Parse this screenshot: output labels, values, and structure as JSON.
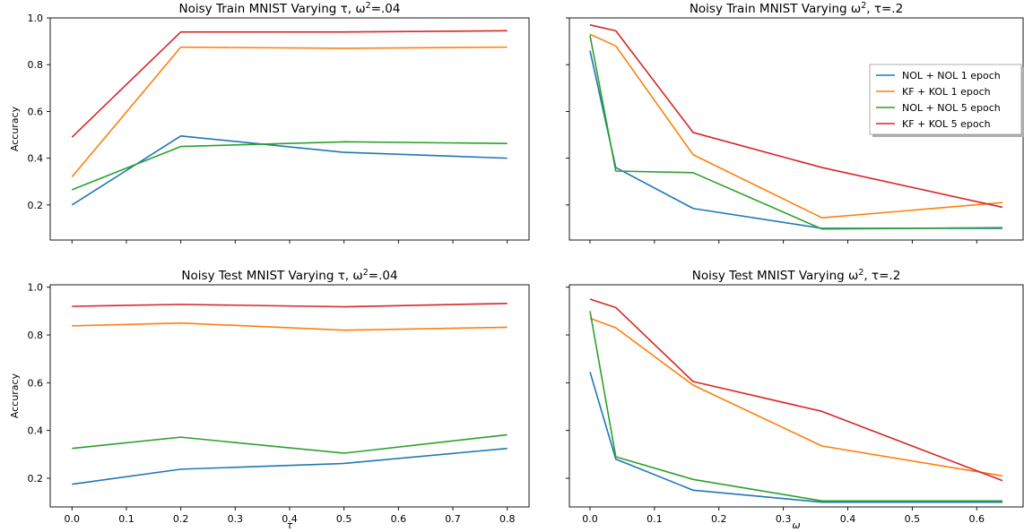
{
  "figure": {
    "colors": {
      "NOL + NOL 1 epoch": "#1f77b4",
      "KF + KOL 1 epoch": "#ff7f0e",
      "NOL + NOL 5 epoch": "#2ca02c",
      "KF + KOL 5 epoch": "#d62728"
    }
  },
  "chart_data": [
    {
      "type": "line",
      "title": "Noisy Train MNIST Varying τ, ω²=.04",
      "ylabel": "Accuracy",
      "xlabel": "",
      "xlim": [
        -0.04,
        0.84
      ],
      "ylim": [
        0.05,
        1.0
      ],
      "xticks": [
        0.0,
        0.1,
        0.2,
        0.3,
        0.4,
        0.5,
        0.6,
        0.7,
        0.8
      ],
      "yticks": [
        0.2,
        0.4,
        0.6,
        0.8,
        1.0
      ],
      "show_xticklabels": false,
      "show_yticklabels": true,
      "x": [
        0.0,
        0.2,
        0.5,
        0.8
      ],
      "series": [
        {
          "name": "NOL + NOL 1 epoch",
          "values": [
            0.2,
            0.495,
            0.425,
            0.4
          ]
        },
        {
          "name": "KF + KOL 1 epoch",
          "values": [
            0.32,
            0.875,
            0.87,
            0.875
          ]
        },
        {
          "name": "NOL + NOL 5 epoch",
          "values": [
            0.265,
            0.45,
            0.47,
            0.463
          ]
        },
        {
          "name": "KF + KOL 5 epoch",
          "values": [
            0.49,
            0.94,
            0.94,
            0.945
          ]
        }
      ]
    },
    {
      "type": "line",
      "title": "Noisy Train MNIST Varying ω², τ=.2",
      "ylabel": "",
      "xlabel": "",
      "xlim": [
        -0.032,
        0.672
      ],
      "ylim": [
        0.05,
        1.0
      ],
      "xticks": [
        0.0,
        0.1,
        0.2,
        0.3,
        0.4,
        0.5,
        0.6
      ],
      "yticks": [
        0.2,
        0.4,
        0.6,
        0.8,
        1.0
      ],
      "show_xticklabels": false,
      "show_yticklabels": false,
      "x": [
        0.0,
        0.04,
        0.16,
        0.36,
        0.64
      ],
      "legend": {
        "position": "upper right",
        "entries": [
          "NOL + NOL 1 epoch",
          "KF + KOL 1 epoch",
          "NOL + NOL 5 epoch",
          "KF + KOL 5 epoch"
        ]
      },
      "series": [
        {
          "name": "NOL + NOL 1 epoch",
          "values": [
            0.86,
            0.36,
            0.185,
            0.1,
            0.1
          ]
        },
        {
          "name": "KF + KOL 1 epoch",
          "values": [
            0.93,
            0.88,
            0.415,
            0.145,
            0.21
          ]
        },
        {
          "name": "NOL + NOL 5 epoch",
          "values": [
            0.925,
            0.345,
            0.338,
            0.097,
            0.103
          ]
        },
        {
          "name": "KF + KOL 5 epoch",
          "values": [
            0.97,
            0.945,
            0.51,
            0.36,
            0.19
          ]
        }
      ]
    },
    {
      "type": "line",
      "title": "Noisy Test MNIST Varying τ, ω²=.04",
      "ylabel": "Accuracy",
      "xlabel": "τ",
      "xlim": [
        -0.04,
        0.84
      ],
      "ylim": [
        0.08,
        1.01
      ],
      "xticks": [
        0.0,
        0.1,
        0.2,
        0.3,
        0.4,
        0.5,
        0.6,
        0.7,
        0.8
      ],
      "yticks": [
        0.2,
        0.4,
        0.6,
        0.8,
        1.0
      ],
      "show_xticklabels": true,
      "show_yticklabels": true,
      "x": [
        0.0,
        0.2,
        0.5,
        0.8
      ],
      "series": [
        {
          "name": "NOL + NOL 1 epoch",
          "values": [
            0.175,
            0.238,
            0.262,
            0.325
          ]
        },
        {
          "name": "KF + KOL 1 epoch",
          "values": [
            0.838,
            0.85,
            0.82,
            0.832
          ]
        },
        {
          "name": "NOL + NOL 5 epoch",
          "values": [
            0.325,
            0.372,
            0.305,
            0.382
          ]
        },
        {
          "name": "KF + KOL 5 epoch",
          "values": [
            0.92,
            0.928,
            0.918,
            0.932
          ]
        }
      ]
    },
    {
      "type": "line",
      "title": "Noisy Test MNIST Varying ω², τ=.2",
      "ylabel": "",
      "xlabel": "ω",
      "xlim": [
        -0.032,
        0.672
      ],
      "ylim": [
        0.08,
        1.01
      ],
      "xticks": [
        0.0,
        0.1,
        0.2,
        0.3,
        0.4,
        0.5,
        0.6
      ],
      "yticks": [
        0.2,
        0.4,
        0.6,
        0.8,
        1.0
      ],
      "show_xticklabels": true,
      "show_yticklabels": false,
      "x": [
        0.0,
        0.04,
        0.16,
        0.36,
        0.64
      ],
      "series": [
        {
          "name": "NOL + NOL 1 epoch",
          "values": [
            0.645,
            0.28,
            0.15,
            0.1,
            0.1
          ]
        },
        {
          "name": "KF + KOL 1 epoch",
          "values": [
            0.87,
            0.83,
            0.59,
            0.335,
            0.21
          ]
        },
        {
          "name": "NOL + NOL 5 epoch",
          "values": [
            0.9,
            0.29,
            0.195,
            0.105,
            0.105
          ]
        },
        {
          "name": "KF + KOL 5 epoch",
          "values": [
            0.95,
            0.915,
            0.605,
            0.48,
            0.19
          ]
        }
      ]
    }
  ]
}
